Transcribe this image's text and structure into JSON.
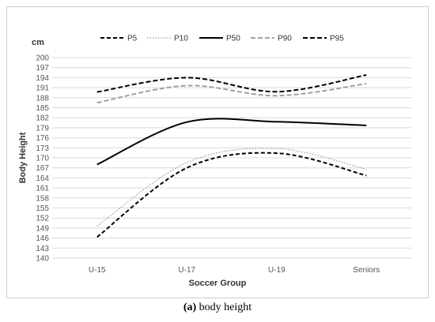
{
  "chart_data": {
    "type": "line",
    "unit_label": "cm",
    "xlabel": "Soccer Group",
    "ylabel": "Body Height",
    "categories": [
      "U-15",
      "U-17",
      "U-19",
      "Seniors"
    ],
    "ylim": [
      140,
      200
    ],
    "yticks": [
      "140",
      "143",
      "146",
      "149",
      "152",
      "155",
      "158",
      "161",
      "164",
      "167",
      "170",
      "173",
      "176",
      "179",
      "182",
      "185",
      "188",
      "191",
      "194",
      "197",
      "200"
    ],
    "grid": true,
    "legend_position": "top",
    "smooth": true,
    "series": [
      {
        "name": "P5",
        "values": [
          146.3,
          167.0,
          171.4,
          164.7
        ],
        "color": "#000000",
        "dash": "5,3",
        "width": 2
      },
      {
        "name": "P10",
        "values": [
          149.6,
          168.6,
          172.8,
          166.6
        ],
        "color": "#999999",
        "dash": "1.5,2",
        "width": 1.2
      },
      {
        "name": "P50",
        "values": [
          168.0,
          180.7,
          180.8,
          179.7
        ],
        "color": "#000000",
        "dash": "",
        "width": 2
      },
      {
        "name": "P90",
        "values": [
          186.5,
          191.6,
          188.6,
          192.2
        ],
        "color": "#a0a0a0",
        "dash": "6,3",
        "width": 2
      },
      {
        "name": "P95",
        "values": [
          189.7,
          194.0,
          189.8,
          194.8
        ],
        "color": "#000000",
        "dash": "6,3",
        "width": 2
      }
    ]
  },
  "caption": {
    "label": "(a)",
    "text": " body height"
  }
}
